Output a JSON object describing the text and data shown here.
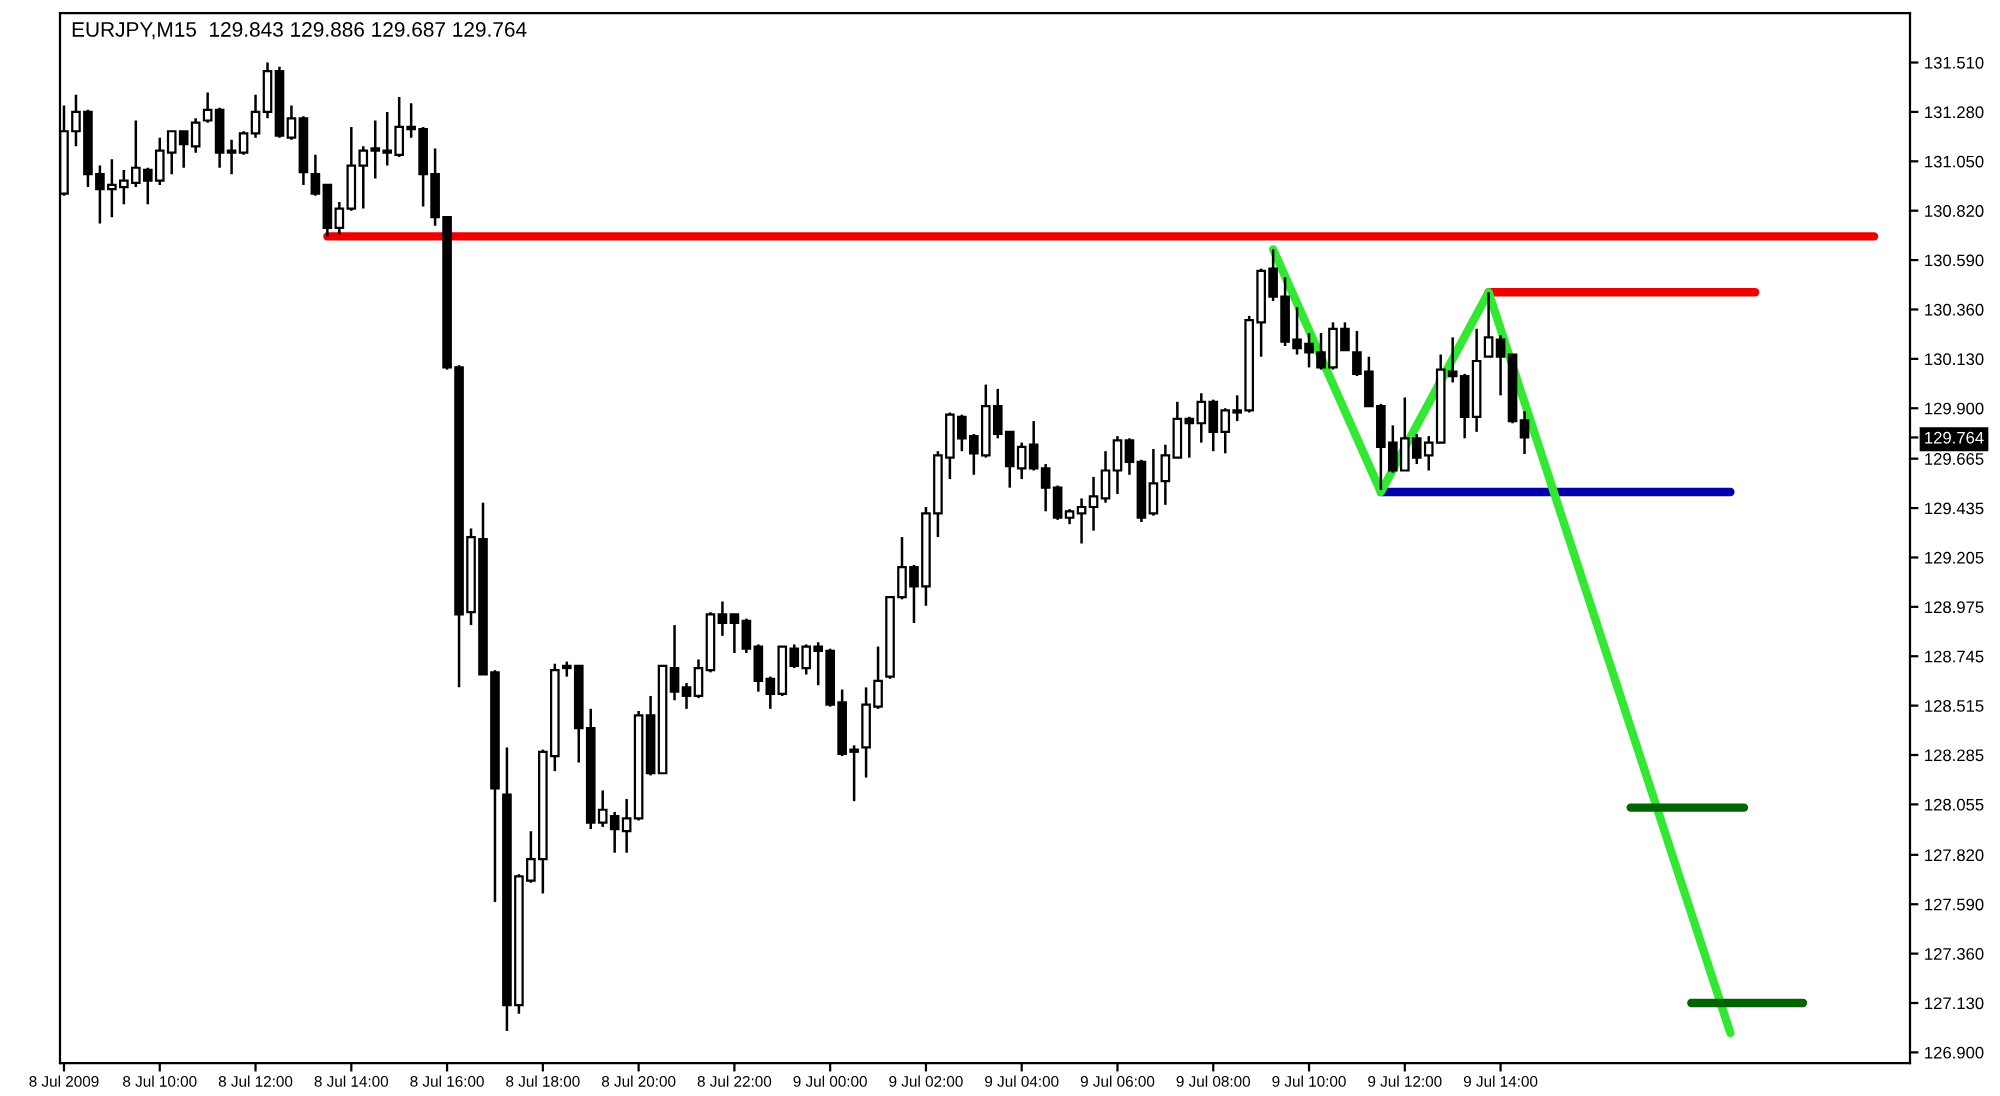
{
  "chart_data": {
    "type": "candlestick",
    "title": "EURJPY,M15  129.843 129.886 129.687 129.764",
    "xlim": [
      "2009-07-08T07:55",
      "2009-07-09T22:33"
    ],
    "xticks": [
      {
        "value": "2009-07-08T08:00",
        "label": "8 Jul 2009"
      },
      {
        "value": "2009-07-08T10:00",
        "label": "8 Jul 10:00"
      },
      {
        "value": "2009-07-08T12:00",
        "label": "8 Jul 12:00"
      },
      {
        "value": "2009-07-08T14:00",
        "label": "8 Jul 14:00"
      },
      {
        "value": "2009-07-08T16:00",
        "label": "8 Jul 16:00"
      },
      {
        "value": "2009-07-08T18:00",
        "label": "8 Jul 18:00"
      },
      {
        "value": "2009-07-08T20:00",
        "label": "8 Jul 20:00"
      },
      {
        "value": "2009-07-08T22:00",
        "label": "8 Jul 22:00"
      },
      {
        "value": "2009-07-09T00:00",
        "label": "9 Jul 00:00"
      },
      {
        "value": "2009-07-09T02:00",
        "label": "9 Jul 02:00"
      },
      {
        "value": "2009-07-09T04:00",
        "label": "9 Jul 04:00"
      },
      {
        "value": "2009-07-09T06:00",
        "label": "9 Jul 06:00"
      },
      {
        "value": "2009-07-09T08:00",
        "label": "9 Jul 08:00"
      },
      {
        "value": "2009-07-09T10:00",
        "label": "9 Jul 10:00"
      },
      {
        "value": "2009-07-09T12:00",
        "label": "9 Jul 12:00"
      },
      {
        "value": "2009-07-09T14:00",
        "label": "9 Jul 14:00"
      }
    ],
    "ylim": [
      126.85,
      131.74
    ],
    "yticks": [
      {
        "value": 131.51,
        "label": "131.510"
      },
      {
        "value": 131.28,
        "label": "131.280"
      },
      {
        "value": 131.05,
        "label": "131.050"
      },
      {
        "value": 130.82,
        "label": "130.820"
      },
      {
        "value": 130.59,
        "label": "130.590"
      },
      {
        "value": 130.36,
        "label": "130.360"
      },
      {
        "value": 130.13,
        "label": "130.130"
      },
      {
        "value": 129.9,
        "label": "129.900"
      },
      {
        "value": 129.764,
        "label": "129.764"
      },
      {
        "value": 129.665,
        "label": "129.665"
      },
      {
        "value": 129.435,
        "label": "129.435"
      },
      {
        "value": 129.205,
        "label": "129.205"
      },
      {
        "value": 128.975,
        "label": "128.975"
      },
      {
        "value": 128.745,
        "label": "128.745"
      },
      {
        "value": 128.515,
        "label": "128.515"
      },
      {
        "value": 128.285,
        "label": "128.285"
      },
      {
        "value": 128.055,
        "label": "128.055"
      },
      {
        "value": 127.82,
        "label": "127.820"
      },
      {
        "value": 127.59,
        "label": "127.590"
      },
      {
        "value": 127.36,
        "label": "127.360"
      },
      {
        "value": 127.13,
        "label": "127.130"
      },
      {
        "value": 126.9,
        "label": "126.900"
      }
    ],
    "grid": false,
    "legend": false,
    "series": [
      {
        "color": "#000000",
        "x": [
          "2009-07-08T08:00",
          "2009-07-08T08:15",
          "2009-07-08T08:30",
          "2009-07-08T08:45",
          "2009-07-08T09:00",
          "2009-07-08T09:15",
          "2009-07-08T09:30",
          "2009-07-08T09:45",
          "2009-07-08T10:00",
          "2009-07-08T10:15",
          "2009-07-08T10:30",
          "2009-07-08T10:45",
          "2009-07-08T11:00",
          "2009-07-08T11:15",
          "2009-07-08T11:30",
          "2009-07-08T11:45",
          "2009-07-08T12:00",
          "2009-07-08T12:15",
          "2009-07-08T12:30",
          "2009-07-08T12:45",
          "2009-07-08T13:00",
          "2009-07-08T13:15",
          "2009-07-08T13:30",
          "2009-07-08T13:45",
          "2009-07-08T14:00",
          "2009-07-08T14:15",
          "2009-07-08T14:30",
          "2009-07-08T14:45",
          "2009-07-08T15:00",
          "2009-07-08T15:15",
          "2009-07-08T15:30",
          "2009-07-08T15:45",
          "2009-07-08T16:00",
          "2009-07-08T16:15",
          "2009-07-08T16:30",
          "2009-07-08T16:45",
          "2009-07-08T17:00",
          "2009-07-08T17:15",
          "2009-07-08T17:30",
          "2009-07-08T17:45",
          "2009-07-08T18:00",
          "2009-07-08T18:15",
          "2009-07-08T18:30",
          "2009-07-08T18:45",
          "2009-07-08T19:00",
          "2009-07-08T19:15",
          "2009-07-08T19:30",
          "2009-07-08T19:45",
          "2009-07-08T20:00",
          "2009-07-08T20:15",
          "2009-07-08T20:30",
          "2009-07-08T20:45",
          "2009-07-08T21:00",
          "2009-07-08T21:15",
          "2009-07-08T21:30",
          "2009-07-08T21:45",
          "2009-07-08T22:00",
          "2009-07-08T22:15",
          "2009-07-08T22:30",
          "2009-07-08T22:45",
          "2009-07-08T23:00",
          "2009-07-08T23:15",
          "2009-07-08T23:30",
          "2009-07-08T23:45",
          "2009-07-09T00:00",
          "2009-07-09T00:15",
          "2009-07-09T00:30",
          "2009-07-09T00:45",
          "2009-07-09T01:00",
          "2009-07-09T01:15",
          "2009-07-09T01:30",
          "2009-07-09T01:45",
          "2009-07-09T02:00",
          "2009-07-09T02:15",
          "2009-07-09T02:30",
          "2009-07-09T02:45",
          "2009-07-09T03:00",
          "2009-07-09T03:15",
          "2009-07-09T03:30",
          "2009-07-09T03:45",
          "2009-07-09T04:00",
          "2009-07-09T04:15",
          "2009-07-09T04:30",
          "2009-07-09T04:45",
          "2009-07-09T05:00",
          "2009-07-09T05:15",
          "2009-07-09T05:30",
          "2009-07-09T05:45",
          "2009-07-09T06:00",
          "2009-07-09T06:15",
          "2009-07-09T06:30",
          "2009-07-09T06:45",
          "2009-07-09T07:00",
          "2009-07-09T07:15",
          "2009-07-09T07:30",
          "2009-07-09T07:45",
          "2009-07-09T08:00",
          "2009-07-09T08:15",
          "2009-07-09T08:30",
          "2009-07-09T08:45",
          "2009-07-09T09:00",
          "2009-07-09T09:15",
          "2009-07-09T09:30",
          "2009-07-09T09:45",
          "2009-07-09T10:00",
          "2009-07-09T10:15",
          "2009-07-09T10:30",
          "2009-07-09T10:45",
          "2009-07-09T11:00",
          "2009-07-09T11:15",
          "2009-07-09T11:30",
          "2009-07-09T11:45",
          "2009-07-09T12:00",
          "2009-07-09T12:15",
          "2009-07-09T12:30",
          "2009-07-09T12:45",
          "2009-07-09T13:00",
          "2009-07-09T13:15",
          "2009-07-09T13:30",
          "2009-07-09T13:45",
          "2009-07-09T14:00",
          "2009-07-09T14:15",
          "2009-07-09T14:30"
        ],
        "ohlc": [
          [
            130.9,
            131.31,
            130.89,
            131.19
          ],
          [
            131.19,
            131.36,
            131.12,
            131.28
          ],
          [
            131.28,
            131.29,
            130.93,
            130.99
          ],
          [
            130.99,
            131.03,
            130.76,
            130.92
          ],
          [
            130.92,
            131.06,
            130.79,
            130.94
          ],
          [
            130.93,
            131.01,
            130.85,
            130.96
          ],
          [
            130.95,
            131.24,
            130.93,
            131.02
          ],
          [
            131.01,
            131.02,
            130.85,
            130.96
          ],
          [
            130.96,
            131.16,
            130.94,
            131.1
          ],
          [
            131.09,
            131.19,
            130.99,
            131.19
          ],
          [
            131.19,
            131.19,
            131.02,
            131.13
          ],
          [
            131.12,
            131.25,
            131.09,
            131.23
          ],
          [
            131.24,
            131.37,
            131.23,
            131.29
          ],
          [
            131.29,
            131.3,
            131.02,
            131.09
          ],
          [
            131.1,
            131.15,
            130.99,
            131.09
          ],
          [
            131.09,
            131.19,
            131.08,
            131.18
          ],
          [
            131.18,
            131.36,
            131.16,
            131.28
          ],
          [
            131.28,
            131.51,
            131.25,
            131.47
          ],
          [
            131.47,
            131.49,
            131.16,
            131.17
          ],
          [
            131.16,
            131.31,
            131.15,
            131.25
          ],
          [
            131.25,
            131.26,
            130.94,
            131.0
          ],
          [
            130.99,
            131.08,
            130.89,
            130.9
          ],
          [
            130.94,
            130.94,
            130.7,
            130.74
          ],
          [
            130.74,
            130.86,
            130.71,
            130.83
          ],
          [
            130.83,
            131.21,
            130.82,
            131.03
          ],
          [
            131.03,
            131.12,
            130.83,
            131.1
          ],
          [
            131.1,
            131.24,
            130.97,
            131.11
          ],
          [
            131.1,
            131.28,
            131.03,
            131.09
          ],
          [
            131.08,
            131.35,
            131.07,
            131.21
          ],
          [
            131.2,
            131.32,
            131.16,
            131.21
          ],
          [
            131.2,
            131.21,
            130.84,
            130.99
          ],
          [
            130.99,
            131.11,
            130.75,
            130.79
          ],
          [
            130.79,
            130.79,
            130.08,
            130.09
          ],
          [
            130.09,
            130.1,
            128.6,
            128.94
          ],
          [
            128.95,
            129.34,
            128.89,
            129.3
          ],
          [
            129.29,
            129.46,
            128.66,
            128.66
          ],
          [
            128.67,
            128.68,
            127.6,
            128.13
          ],
          [
            128.1,
            128.32,
            127.0,
            127.12
          ],
          [
            127.12,
            127.73,
            127.08,
            127.72
          ],
          [
            127.7,
            127.93,
            127.69,
            127.8
          ],
          [
            127.8,
            128.31,
            127.64,
            128.3
          ],
          [
            128.28,
            128.71,
            128.21,
            128.68
          ],
          [
            128.69,
            128.72,
            128.65,
            128.7
          ],
          [
            128.7,
            128.7,
            128.25,
            128.41
          ],
          [
            128.41,
            128.5,
            127.94,
            127.97
          ],
          [
            127.97,
            128.12,
            127.95,
            128.03
          ],
          [
            128.0,
            128.02,
            127.83,
            127.94
          ],
          [
            127.93,
            128.08,
            127.83,
            127.99
          ],
          [
            127.99,
            128.49,
            127.98,
            128.47
          ],
          [
            128.47,
            128.56,
            128.19,
            128.2
          ],
          [
            128.2,
            128.7,
            128.2,
            128.7
          ],
          [
            128.69,
            128.89,
            128.54,
            128.58
          ],
          [
            128.6,
            128.62,
            128.5,
            128.56
          ],
          [
            128.56,
            128.73,
            128.55,
            128.69
          ],
          [
            128.68,
            128.95,
            128.67,
            128.94
          ],
          [
            128.94,
            129.0,
            128.84,
            128.9
          ],
          [
            128.94,
            128.94,
            128.76,
            128.9
          ],
          [
            128.91,
            128.92,
            128.76,
            128.78
          ],
          [
            128.79,
            128.8,
            128.58,
            128.63
          ],
          [
            128.64,
            128.65,
            128.5,
            128.57
          ],
          [
            128.57,
            128.79,
            128.56,
            128.79
          ],
          [
            128.78,
            128.8,
            128.69,
            128.7
          ],
          [
            128.69,
            128.8,
            128.66,
            128.79
          ],
          [
            128.79,
            128.81,
            128.61,
            128.77
          ],
          [
            128.77,
            128.78,
            128.51,
            128.52
          ],
          [
            128.53,
            128.59,
            128.28,
            128.29
          ],
          [
            128.31,
            128.33,
            128.07,
            128.3
          ],
          [
            128.32,
            128.6,
            128.18,
            128.52
          ],
          [
            128.51,
            128.79,
            128.5,
            128.63
          ],
          [
            128.65,
            129.02,
            128.64,
            129.02
          ],
          [
            129.02,
            129.3,
            129.01,
            129.16
          ],
          [
            129.16,
            129.17,
            128.9,
            129.07
          ],
          [
            129.07,
            129.44,
            128.98,
            129.41
          ],
          [
            129.41,
            129.7,
            129.3,
            129.68
          ],
          [
            129.67,
            129.88,
            129.57,
            129.87
          ],
          [
            129.86,
            129.87,
            129.7,
            129.76
          ],
          [
            129.77,
            129.78,
            129.59,
            129.69
          ],
          [
            129.68,
            130.01,
            129.67,
            129.91
          ],
          [
            129.91,
            129.99,
            129.76,
            129.78
          ],
          [
            129.79,
            129.79,
            129.53,
            129.63
          ],
          [
            129.62,
            129.74,
            129.57,
            129.72
          ],
          [
            129.73,
            129.84,
            129.61,
            129.62
          ],
          [
            129.62,
            129.64,
            129.42,
            129.53
          ],
          [
            129.53,
            129.54,
            129.38,
            129.39
          ],
          [
            129.39,
            129.43,
            129.36,
            129.42
          ],
          [
            129.41,
            129.48,
            129.27,
            129.44
          ],
          [
            129.44,
            129.58,
            129.33,
            129.49
          ],
          [
            129.48,
            129.7,
            129.46,
            129.61
          ],
          [
            129.61,
            129.77,
            129.5,
            129.75
          ],
          [
            129.75,
            129.76,
            129.59,
            129.65
          ],
          [
            129.65,
            129.66,
            129.37,
            129.39
          ],
          [
            129.41,
            129.71,
            129.4,
            129.55
          ],
          [
            129.56,
            129.73,
            129.45,
            129.68
          ],
          [
            129.67,
            129.93,
            129.67,
            129.85
          ],
          [
            129.85,
            129.86,
            129.67,
            129.83
          ],
          [
            129.83,
            129.97,
            129.74,
            129.93
          ],
          [
            129.93,
            129.94,
            129.7,
            129.79
          ],
          [
            129.79,
            129.9,
            129.69,
            129.89
          ],
          [
            129.88,
            129.96,
            129.84,
            129.89
          ],
          [
            129.89,
            130.33,
            129.88,
            130.31
          ],
          [
            130.3,
            130.55,
            130.14,
            130.54
          ],
          [
            130.55,
            130.64,
            130.4,
            130.42
          ],
          [
            130.42,
            130.51,
            130.19,
            130.21
          ],
          [
            130.22,
            130.37,
            130.15,
            130.18
          ],
          [
            130.2,
            130.25,
            130.09,
            130.16
          ],
          [
            130.16,
            130.25,
            130.08,
            130.09
          ],
          [
            130.09,
            130.3,
            130.08,
            130.27
          ],
          [
            130.27,
            130.3,
            130.17,
            130.17
          ],
          [
            130.16,
            130.26,
            130.05,
            130.06
          ],
          [
            130.07,
            130.14,
            129.91,
            129.91
          ],
          [
            129.91,
            129.92,
            129.52,
            129.72
          ],
          [
            129.74,
            129.82,
            129.6,
            129.61
          ],
          [
            129.61,
            129.95,
            129.61,
            129.76
          ],
          [
            129.76,
            129.78,
            129.64,
            129.67
          ],
          [
            129.68,
            129.77,
            129.61,
            129.74
          ],
          [
            129.74,
            130.15,
            129.74,
            130.08
          ],
          [
            130.07,
            130.23,
            130.02,
            130.05
          ],
          [
            130.05,
            130.06,
            129.76,
            129.86
          ],
          [
            129.86,
            130.27,
            129.79,
            130.12
          ],
          [
            130.14,
            130.44,
            130.14,
            130.23
          ],
          [
            130.22,
            130.24,
            129.96,
            130.14
          ],
          [
            130.15,
            130.15,
            129.83,
            129.84
          ],
          [
            129.843,
            129.886,
            129.687,
            129.764
          ]
        ]
      },
      {
        "type": "line",
        "color": "#ee0000",
        "x": [
          "2009-07-08T13:30",
          "2009-07-09T21:48"
        ],
        "values": [
          130.7,
          130.7
        ]
      },
      {
        "type": "line",
        "color": "#ee0000",
        "x": [
          "2009-07-09T13:45",
          "2009-07-09T19:19"
        ],
        "values": [
          130.44,
          130.44
        ]
      },
      {
        "type": "line",
        "color": "#0000aa",
        "x": [
          "2009-07-09T11:30",
          "2009-07-09T18:48"
        ],
        "values": [
          129.51,
          129.51
        ]
      },
      {
        "type": "line",
        "color": "#33e833",
        "x": [
          "2009-07-09T09:15",
          "2009-07-09T11:30",
          "2009-07-09T13:45",
          "2009-07-09T18:48"
        ],
        "values": [
          130.64,
          129.51,
          130.44,
          126.99
        ]
      },
      {
        "type": "line",
        "color": "#006400",
        "x": [
          "2009-07-09T16:43",
          "2009-07-09T19:05"
        ],
        "values": [
          128.04,
          128.04
        ]
      },
      {
        "type": "line",
        "color": "#006400",
        "x": [
          "2009-07-09T17:59",
          "2009-07-09T20:19"
        ],
        "values": [
          127.13,
          127.13
        ]
      }
    ]
  }
}
